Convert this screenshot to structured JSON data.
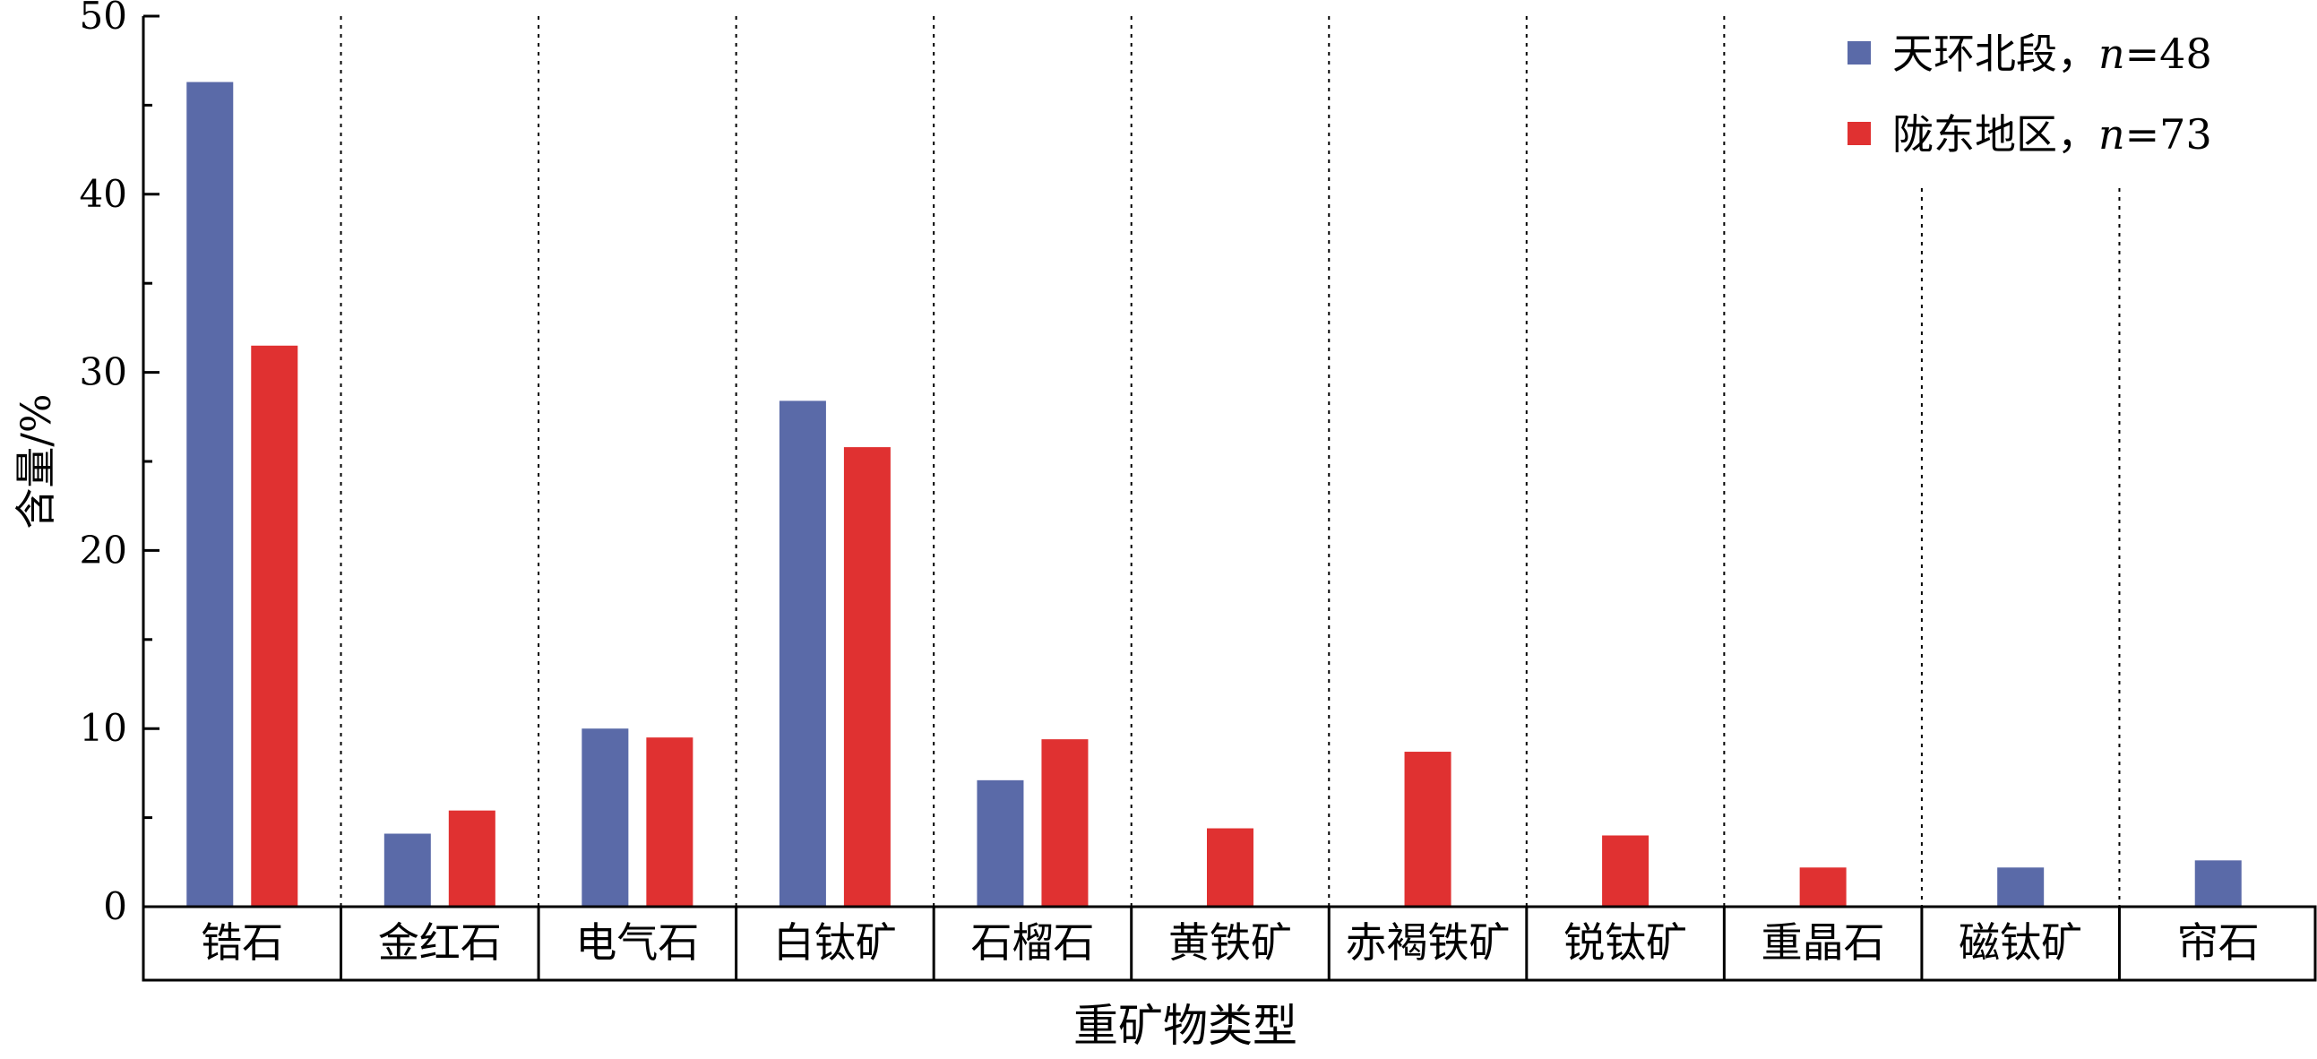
{
  "chart_data": {
    "type": "bar",
    "ylabel": "含量/%",
    "xlabel": "重矿物类型",
    "ylim": [
      0,
      50
    ],
    "yticks": [
      0,
      10,
      20,
      30,
      40,
      50
    ],
    "grid": "dotted vertical category separators",
    "legend_position": "top-right",
    "categories": [
      "锆石",
      "金红石",
      "电气石",
      "白钛矿",
      "石榴石",
      "黄铁矿",
      "赤褐铁矿",
      "锐钛矿",
      "重晶石",
      "磁钛矿",
      "帘石"
    ],
    "series": [
      {
        "name_prefix": "天环北段，",
        "name_var": "n",
        "name_suffix": "=48",
        "color": "#5A6AA8",
        "values": [
          46.3,
          4.1,
          10.0,
          28.4,
          7.1,
          null,
          null,
          null,
          null,
          2.2,
          2.6
        ]
      },
      {
        "name_prefix": "陇东地区，",
        "name_var": "n",
        "name_suffix": "=73",
        "color": "#E03131",
        "values": [
          31.5,
          5.4,
          9.5,
          25.8,
          9.4,
          4.4,
          8.7,
          4.0,
          2.2,
          null,
          null
        ]
      }
    ]
  }
}
